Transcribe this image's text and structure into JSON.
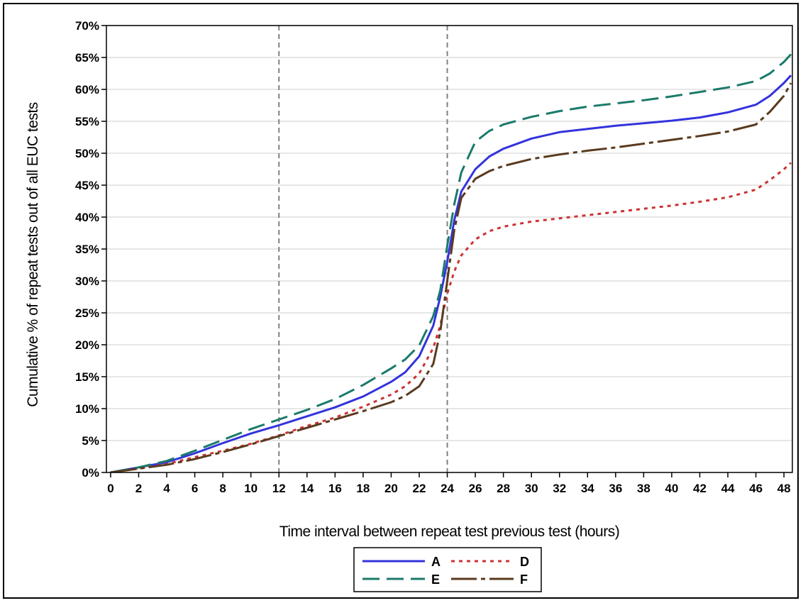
{
  "chart_data": {
    "type": "line",
    "xlabel": "Time interval between repeat test previous test (hours)",
    "ylabel": "Cumulative % of repeat tests out of all EUC tests",
    "xlim": [
      -0.3,
      48.6
    ],
    "ylim": [
      0,
      70
    ],
    "x_ticks": [
      0,
      2,
      4,
      6,
      8,
      10,
      12,
      14,
      16,
      18,
      20,
      22,
      24,
      26,
      28,
      30,
      32,
      34,
      36,
      38,
      40,
      42,
      44,
      46,
      48
    ],
    "y_ticks": [
      0,
      5,
      10,
      15,
      20,
      25,
      30,
      35,
      40,
      45,
      50,
      55,
      60,
      65,
      70
    ],
    "y_tick_labels": [
      "0%",
      "5%",
      "10%",
      "15%",
      "20%",
      "25%",
      "30%",
      "35%",
      "40%",
      "45%",
      "50%",
      "55%",
      "60%",
      "65%",
      "70%"
    ],
    "grid": "horizontal",
    "reference_lines_x": [
      12,
      24
    ],
    "legend_placement": "bottom-center",
    "series": [
      {
        "name": "A",
        "color": "#3333dd",
        "dash": "solid",
        "points": [
          [
            0,
            0
          ],
          [
            2,
            0.8
          ],
          [
            4,
            1.6
          ],
          [
            6,
            3
          ],
          [
            8,
            4.6
          ],
          [
            10,
            6.1
          ],
          [
            12,
            7.4
          ],
          [
            14,
            8.8
          ],
          [
            16,
            10.2
          ],
          [
            18,
            11.9
          ],
          [
            20,
            14.2
          ],
          [
            21,
            15.7
          ],
          [
            22,
            18.2
          ],
          [
            23,
            23
          ],
          [
            23.5,
            27.5
          ],
          [
            24,
            33
          ],
          [
            24.5,
            39.5
          ],
          [
            25,
            44
          ],
          [
            26,
            47.5
          ],
          [
            27,
            49.5
          ],
          [
            28,
            50.7
          ],
          [
            30,
            52.3
          ],
          [
            32,
            53.3
          ],
          [
            34,
            53.8
          ],
          [
            36,
            54.3
          ],
          [
            38,
            54.7
          ],
          [
            40,
            55.1
          ],
          [
            42,
            55.6
          ],
          [
            44,
            56.4
          ],
          [
            46,
            57.6
          ],
          [
            47,
            59
          ],
          [
            48,
            61
          ],
          [
            48.5,
            62.2
          ]
        ]
      },
      {
        "name": "D",
        "color": "#cc3333",
        "dash": "5,6",
        "points": [
          [
            0,
            0
          ],
          [
            2,
            0.6
          ],
          [
            4,
            1.3
          ],
          [
            6,
            2.4
          ],
          [
            8,
            3.4
          ],
          [
            10,
            4.5
          ],
          [
            12,
            5.8
          ],
          [
            14,
            7.3
          ],
          [
            16,
            8.6
          ],
          [
            18,
            10.3
          ],
          [
            20,
            12.2
          ],
          [
            21,
            13.5
          ],
          [
            22,
            15.5
          ],
          [
            23,
            19.5
          ],
          [
            23.5,
            23
          ],
          [
            24,
            28
          ],
          [
            24.5,
            31.5
          ],
          [
            25,
            34
          ],
          [
            26,
            36.5
          ],
          [
            27,
            37.8
          ],
          [
            28,
            38.5
          ],
          [
            30,
            39.3
          ],
          [
            32,
            39.8
          ],
          [
            34,
            40.3
          ],
          [
            36,
            40.8
          ],
          [
            38,
            41.3
          ],
          [
            40,
            41.8
          ],
          [
            42,
            42.4
          ],
          [
            44,
            43.1
          ],
          [
            46,
            44.3
          ],
          [
            47,
            45.8
          ],
          [
            48,
            47.5
          ],
          [
            48.5,
            48.5
          ]
        ]
      },
      {
        "name": "E",
        "color": "#1a7a6a",
        "dash": "24,10",
        "points": [
          [
            0,
            0
          ],
          [
            2,
            0.8
          ],
          [
            4,
            1.8
          ],
          [
            6,
            3.4
          ],
          [
            8,
            5.1
          ],
          [
            10,
            6.8
          ],
          [
            12,
            8.3
          ],
          [
            14,
            9.8
          ],
          [
            16,
            11.5
          ],
          [
            18,
            13.7
          ],
          [
            20,
            16.3
          ],
          [
            21,
            17.7
          ],
          [
            22,
            19.9
          ],
          [
            23,
            24.5
          ],
          [
            23.5,
            28.5
          ],
          [
            24,
            35.5
          ],
          [
            24.5,
            42
          ],
          [
            25,
            47
          ],
          [
            26,
            51.8
          ],
          [
            27,
            53.5
          ],
          [
            28,
            54.5
          ],
          [
            30,
            55.7
          ],
          [
            32,
            56.6
          ],
          [
            34,
            57.3
          ],
          [
            36,
            57.8
          ],
          [
            38,
            58.3
          ],
          [
            40,
            58.9
          ],
          [
            42,
            59.6
          ],
          [
            44,
            60.3
          ],
          [
            46,
            61.3
          ],
          [
            47,
            62.5
          ],
          [
            48,
            64.3
          ],
          [
            48.5,
            65.5
          ]
        ]
      },
      {
        "name": "F",
        "color": "#5a3a1e",
        "dash": "36,6,6,6",
        "points": [
          [
            0,
            0
          ],
          [
            2,
            0.6
          ],
          [
            4,
            1.2
          ],
          [
            6,
            2.1
          ],
          [
            8,
            3.2
          ],
          [
            10,
            4.4
          ],
          [
            12,
            5.7
          ],
          [
            14,
            7
          ],
          [
            16,
            8.3
          ],
          [
            18,
            9.6
          ],
          [
            20,
            11
          ],
          [
            21,
            12
          ],
          [
            22,
            13.5
          ],
          [
            23,
            17
          ],
          [
            23.5,
            22
          ],
          [
            24,
            30
          ],
          [
            24.5,
            38
          ],
          [
            25,
            43
          ],
          [
            26,
            46
          ],
          [
            27,
            47.2
          ],
          [
            28,
            48
          ],
          [
            30,
            49.1
          ],
          [
            32,
            49.8
          ],
          [
            34,
            50.4
          ],
          [
            36,
            50.9
          ],
          [
            38,
            51.5
          ],
          [
            40,
            52.1
          ],
          [
            42,
            52.7
          ],
          [
            44,
            53.4
          ],
          [
            46,
            54.5
          ],
          [
            47,
            56.5
          ],
          [
            48,
            59
          ],
          [
            48.5,
            61
          ]
        ]
      }
    ]
  }
}
